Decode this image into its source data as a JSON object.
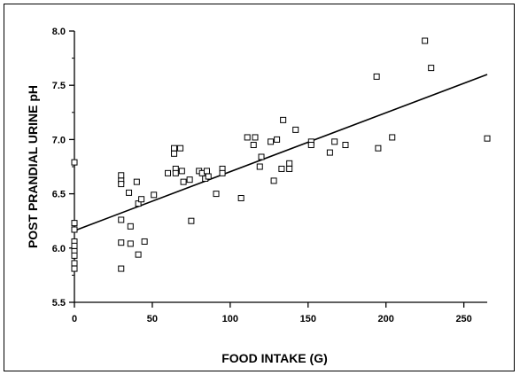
{
  "chart_data": {
    "type": "scatter",
    "xlabel": "FOOD INTAKE (G)",
    "ylabel": "POST PRANDIAL URINE pH",
    "xlim": [
      0,
      265
    ],
    "ylim": [
      5.5,
      8.0
    ],
    "x_ticks": [
      0,
      50,
      100,
      150,
      200,
      250
    ],
    "x_tick_labels": [
      "0",
      "50",
      "100",
      "150",
      "200",
      "250"
    ],
    "y_ticks": [
      5.5,
      6.0,
      6.5,
      7.0,
      7.5,
      8.0
    ],
    "y_tick_labels": [
      "5.5",
      "6.0",
      "6.5",
      "7.0",
      "7.5",
      "8.0"
    ],
    "grid": false,
    "marker": "open-square",
    "series": [
      {
        "points": [
          [
            0,
            6.79
          ],
          [
            0,
            6.23
          ],
          [
            0,
            6.17
          ],
          [
            0,
            6.06
          ],
          [
            0,
            6.02
          ],
          [
            0,
            5.97
          ],
          [
            0,
            5.93
          ],
          [
            0,
            5.86
          ],
          [
            0,
            5.81
          ],
          [
            30,
            6.67
          ],
          [
            30,
            6.62
          ],
          [
            30,
            6.59
          ],
          [
            30,
            6.26
          ],
          [
            30,
            6.05
          ],
          [
            30,
            5.81
          ],
          [
            35,
            6.51
          ],
          [
            36,
            6.2
          ],
          [
            36,
            6.04
          ],
          [
            40,
            6.61
          ],
          [
            41,
            6.41
          ],
          [
            41,
            5.94
          ],
          [
            43,
            6.45
          ],
          [
            45,
            6.06
          ],
          [
            51,
            6.49
          ],
          [
            60,
            6.69
          ],
          [
            64,
            6.92
          ],
          [
            64,
            6.87
          ],
          [
            65,
            6.73
          ],
          [
            65,
            6.69
          ],
          [
            68,
            6.92
          ],
          [
            69,
            6.71
          ],
          [
            70,
            6.61
          ],
          [
            74,
            6.63
          ],
          [
            75,
            6.25
          ],
          [
            80,
            6.71
          ],
          [
            82,
            6.69
          ],
          [
            84,
            6.64
          ],
          [
            85,
            6.71
          ],
          [
            86,
            6.66
          ],
          [
            91,
            6.5
          ],
          [
            95,
            6.73
          ],
          [
            95,
            6.69
          ],
          [
            107,
            6.46
          ],
          [
            111,
            7.02
          ],
          [
            115,
            6.95
          ],
          [
            116,
            7.02
          ],
          [
            119,
            6.75
          ],
          [
            120,
            6.84
          ],
          [
            126,
            6.98
          ],
          [
            128,
            6.62
          ],
          [
            130,
            7.0
          ],
          [
            133,
            6.73
          ],
          [
            134,
            7.18
          ],
          [
            138,
            6.78
          ],
          [
            138,
            6.73
          ],
          [
            142,
            7.09
          ],
          [
            152,
            6.98
          ],
          [
            152,
            6.95
          ],
          [
            164,
            6.88
          ],
          [
            167,
            6.98
          ],
          [
            174,
            6.95
          ],
          [
            194,
            7.58
          ],
          [
            195,
            6.92
          ],
          [
            204,
            7.02
          ],
          [
            225,
            7.91
          ],
          [
            229,
            7.66
          ],
          [
            265,
            7.01
          ]
        ]
      }
    ],
    "regression_line": [
      [
        0,
        6.16
      ],
      [
        265,
        7.6
      ]
    ]
  }
}
